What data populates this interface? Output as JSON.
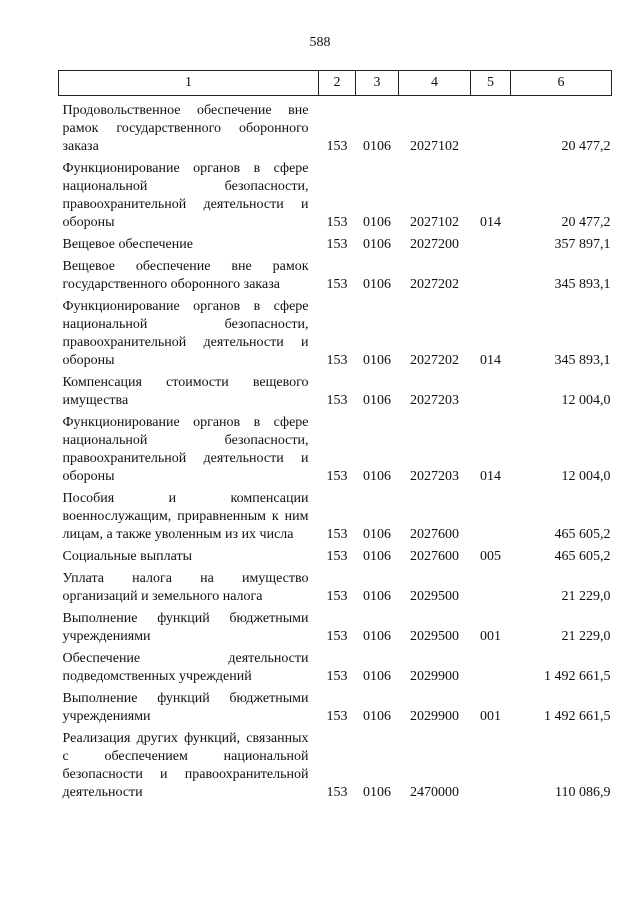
{
  "page_number": "588",
  "header": [
    "1",
    "2",
    "3",
    "4",
    "5",
    "6"
  ],
  "rows": [
    {
      "name": "Продовольственное обеспечение вне рамок государственного оборонного заказа",
      "c2": "153",
      "c3": "0106",
      "c4": "2027102",
      "c5": "",
      "c6": "20 477,2"
    },
    {
      "name": "Функционирование органов в сфере национальной безопасности, правоохранительной деятельности и обороны",
      "c2": "153",
      "c3": "0106",
      "c4": "2027102",
      "c5": "014",
      "c6": "20 477,2"
    },
    {
      "name": "Вещевое обеспечение",
      "c2": "153",
      "c3": "0106",
      "c4": "2027200",
      "c5": "",
      "c6": "357 897,1"
    },
    {
      "name": "Вещевое обеспечение вне рамок государственного оборонного заказа",
      "c2": "153",
      "c3": "0106",
      "c4": "2027202",
      "c5": "",
      "c6": "345 893,1"
    },
    {
      "name": "Функционирование органов в сфере национальной безопасности, правоохранительной деятельности и обороны",
      "c2": "153",
      "c3": "0106",
      "c4": "2027202",
      "c5": "014",
      "c6": "345 893,1"
    },
    {
      "name": "Компенсация стоимости вещевого имущества",
      "c2": "153",
      "c3": "0106",
      "c4": "2027203",
      "c5": "",
      "c6": "12 004,0"
    },
    {
      "name": "Функционирование органов в сфере национальной безопасности, правоохранительной деятельности и обороны",
      "c2": "153",
      "c3": "0106",
      "c4": "2027203",
      "c5": "014",
      "c6": "12 004,0"
    },
    {
      "name": "Пособия и компенсации военнослужащим, приравненным к ним лицам, а также уволенным из их числа",
      "c2": "153",
      "c3": "0106",
      "c4": "2027600",
      "c5": "",
      "c6": "465 605,2"
    },
    {
      "name": "Социальные выплаты",
      "c2": "153",
      "c3": "0106",
      "c4": "2027600",
      "c5": "005",
      "c6": "465 605,2"
    },
    {
      "name": "Уплата налога на имущество организаций и земельного налога",
      "c2": "153",
      "c3": "0106",
      "c4": "2029500",
      "c5": "",
      "c6": "21 229,0"
    },
    {
      "name": "Выполнение функций бюджетными учреждениями",
      "c2": "153",
      "c3": "0106",
      "c4": "2029500",
      "c5": "001",
      "c6": "21 229,0"
    },
    {
      "name": "Обеспечение деятельности подведомственных учреждений",
      "c2": "153",
      "c3": "0106",
      "c4": "2029900",
      "c5": "",
      "c6": "1 492 661,5"
    },
    {
      "name": "Выполнение функций бюджетными учреждениями",
      "c2": "153",
      "c3": "0106",
      "c4": "2029900",
      "c5": "001",
      "c6": "1 492 661,5"
    },
    {
      "name": "Реализация других функций, связанных с обеспечением национальной безопасности и правоохранительной деятельности",
      "c2": "153",
      "c3": "0106",
      "c4": "2470000",
      "c5": "",
      "c6": "110 086,9"
    }
  ]
}
